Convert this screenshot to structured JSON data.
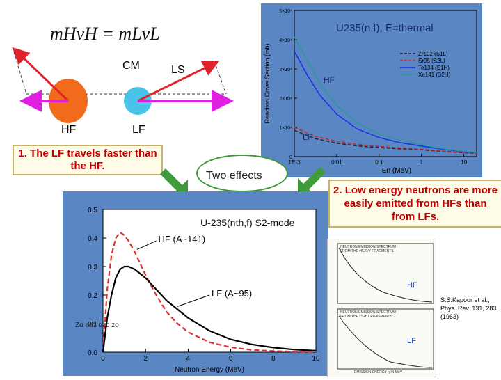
{
  "kinematics": {
    "equation": "mHvH = mLvL",
    "cm_label": "CM",
    "ls_label": "LS",
    "hf_label": "HF",
    "lf_label": "LF"
  },
  "callouts": {
    "lf_faster": "1. The LF travels faster than the HF.",
    "low_energy": "2. Low energy neutrons are more easily emitted from HFs than from LFs.",
    "two_effects": "Two effects"
  },
  "colors": {
    "hf_body": "#f26a1b",
    "lf_body": "#49c3e8",
    "red_arrow": "#e0232a",
    "magenta_arrow": "#e020e0",
    "panel_blue": "#5a86c4"
  },
  "chart_data": [
    {
      "type": "line",
      "title": "U235(n,f),  E=thermal",
      "xlabel": "En (MeV)",
      "ylabel": "Reaction Cross Section (mb)",
      "x_scale": "log",
      "xlim": [
        0.001,
        20
      ],
      "ylim": [
        0,
        50000
      ],
      "x_ticks": [
        "1E-3",
        "0.01",
        "0.1",
        "1",
        "10"
      ],
      "y_ticks": [
        "0",
        "1×10⁴",
        "2×10⁴",
        "3×10⁴",
        "4×10⁴",
        "5×10⁴"
      ],
      "series": [
        {
          "name": "Zr102  (S1L)",
          "color": "#222222",
          "dash": "dash",
          "x": [
            0.001,
            0.003,
            0.01,
            0.03,
            0.1,
            0.3,
            1,
            3,
            10,
            20
          ],
          "y": [
            9000,
            6200,
            4600,
            3700,
            3100,
            2700,
            2300,
            1800,
            1300,
            1100
          ]
        },
        {
          "name": "Sr95  (S2L)",
          "color": "#d22020",
          "dash": "dash",
          "x": [
            0.001,
            0.003,
            0.01,
            0.03,
            0.1,
            0.3,
            1,
            3,
            10,
            20
          ],
          "y": [
            10000,
            7000,
            5200,
            4200,
            3500,
            3000,
            2500,
            1900,
            1400,
            1200
          ]
        },
        {
          "name": "Te134  (S1H)",
          "color": "#1830e6",
          "dash": "solid",
          "x": [
            0.001,
            0.002,
            0.004,
            0.01,
            0.03,
            0.1,
            0.3,
            1,
            3,
            10,
            20
          ],
          "y": [
            36000,
            28000,
            21000,
            14500,
            9500,
            6500,
            4800,
            3600,
            2600,
            1700,
            1300
          ]
        },
        {
          "name": "Xe141  (S2H)",
          "color": "#2a9a9a",
          "dash": "solid",
          "x": [
            0.001,
            0.002,
            0.004,
            0.01,
            0.03,
            0.1,
            0.3,
            1,
            3,
            10,
            20
          ],
          "y": [
            41000,
            33000,
            25000,
            17500,
            11500,
            7800,
            5600,
            4000,
            2800,
            1800,
            1400
          ]
        }
      ],
      "annotations": [
        "HF",
        "LF"
      ]
    },
    {
      "type": "line",
      "title": "U-235(nth,f)   S2-mode",
      "xlabel": "Neutron Energy (MeV)",
      "ylabel": "",
      "xlim": [
        0,
        10
      ],
      "ylim": [
        0,
        0.5
      ],
      "x_ticks": [
        "0",
        "2",
        "4",
        "6",
        "8",
        "10"
      ],
      "y_ticks": [
        "0.0",
        "0.1",
        "0.2",
        "0.3",
        "0.4",
        "0.5"
      ],
      "series": [
        {
          "name": "HF (A~141)",
          "color": "#e03030",
          "dash": "dash",
          "x": [
            0,
            0.2,
            0.4,
            0.6,
            0.8,
            1.0,
            1.2,
            1.5,
            2,
            2.5,
            3,
            3.5,
            4,
            5,
            6,
            7,
            8,
            9,
            10
          ],
          "y": [
            0,
            0.22,
            0.34,
            0.4,
            0.42,
            0.41,
            0.39,
            0.35,
            0.27,
            0.2,
            0.14,
            0.1,
            0.07,
            0.035,
            0.017,
            0.008,
            0.004,
            0.002,
            0.001
          ]
        },
        {
          "name": "LF (A~95)",
          "color": "#000000",
          "dash": "solid",
          "x": [
            0,
            0.2,
            0.4,
            0.6,
            0.8,
            1.0,
            1.2,
            1.5,
            2,
            2.5,
            3,
            3.5,
            4,
            5,
            6,
            7,
            8,
            9,
            10
          ],
          "y": [
            0,
            0.12,
            0.2,
            0.26,
            0.29,
            0.3,
            0.3,
            0.29,
            0.26,
            0.22,
            0.18,
            0.15,
            0.12,
            0.075,
            0.045,
            0.027,
            0.016,
            0.009,
            0.005
          ]
        }
      ]
    }
  ],
  "reference": {
    "hf_tag": "HF",
    "lf_tag": "LF",
    "citation": "S.S.Kapoor et al., Phys. Rev. 131, 283 (1963)",
    "top_heading": "NEUTRON EMISSION SPECTRUM FROM THE HEAVY FRAGMENTS",
    "bottom_heading": "NEUTRON EMISSION SPECTRUM FROM THE LIGHT FRAGMENTS",
    "x_axis": "EMISSION ENERGY η IN MeV"
  }
}
